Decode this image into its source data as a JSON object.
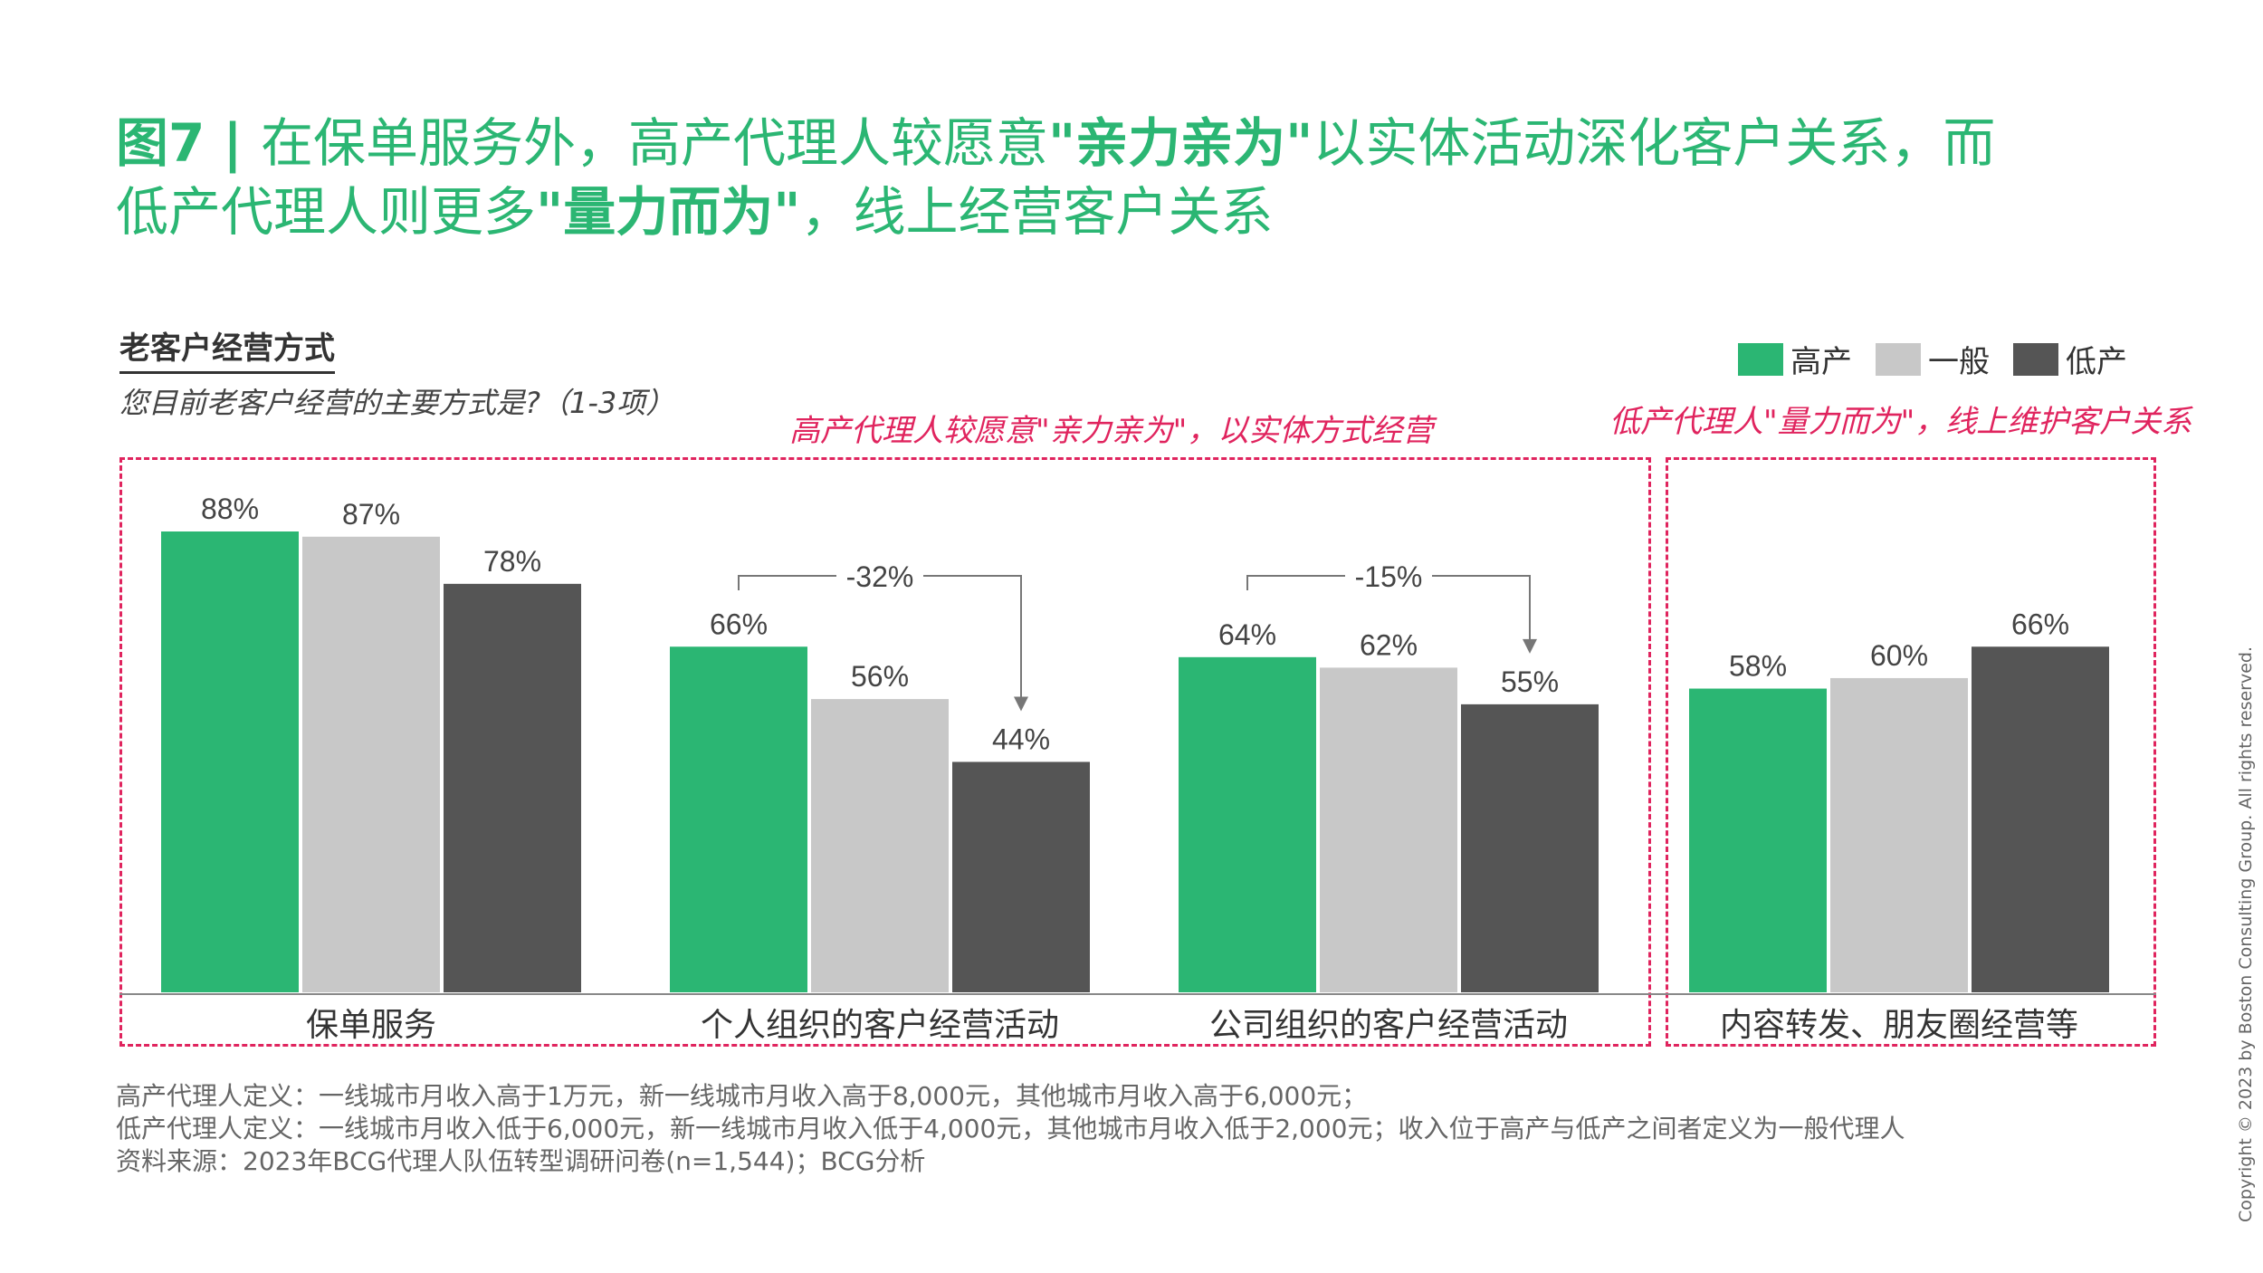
{
  "title": {
    "prefix": "图7 | ",
    "part1": "在保单服务外，高产代理人较愿意",
    "bold1": "\"亲力亲为\"",
    "part2": "以实体活动深化客户关系，而",
    "part3": "低产代理人则更多",
    "bold2": "\"量力而为\"",
    "part4": "，线上经营客户关系"
  },
  "subtitle": "老客户经营方式",
  "question": "您目前老客户经营的主要方式是?（1-3项）",
  "callouts": {
    "left": "高产代理人较愿意\"亲力亲为\"，以实体方式经营",
    "right": "低产代理人\"量力而为\"，线上维护客户关系"
  },
  "footnotes": [
    "高产代理人定义：一线城市月收入高于1万元，新一线城市月收入高于8,000元，其他城市月收入高于6,000元；",
    "低产代理人定义：一线城市月收入低于6,000元，新一线城市月收入低于4,000元，其他城市月收入低于2,000元；收入位于高产与低产之间者定义为一般代理人",
    "资料来源：2023年BCG代理人队伍转型调研问卷(n=1,544)；BCG分析"
  ],
  "copyright": "Copyright © 2023 by Boston Consulting Group. All rights reserved.",
  "colors": {
    "accent": "#2bb673",
    "high": "#2bb673",
    "mid": "#c8c8c8",
    "low": "#555555",
    "callout": "#e0245e"
  },
  "chart_data": {
    "type": "bar",
    "categories": [
      "保单服务",
      "个人组织的客户经营活动",
      "公司组织的客户经营活动",
      "内容转发、朋友圈经营等"
    ],
    "series": [
      {
        "name": "高产",
        "values": [
          88,
          66,
          64,
          58
        ]
      },
      {
        "name": "一般",
        "values": [
          87,
          56,
          62,
          60
        ]
      },
      {
        "name": "低产",
        "values": [
          78,
          44,
          55,
          66
        ]
      }
    ],
    "value_suffix": "%",
    "ylim": [
      0,
      100
    ],
    "annotations": [
      {
        "category": "个人组织的客户经营活动",
        "label": "-32%"
      },
      {
        "category": "公司组织的客户经营活动",
        "label": "-15%"
      }
    ],
    "legend": "top-right",
    "grid": false
  }
}
